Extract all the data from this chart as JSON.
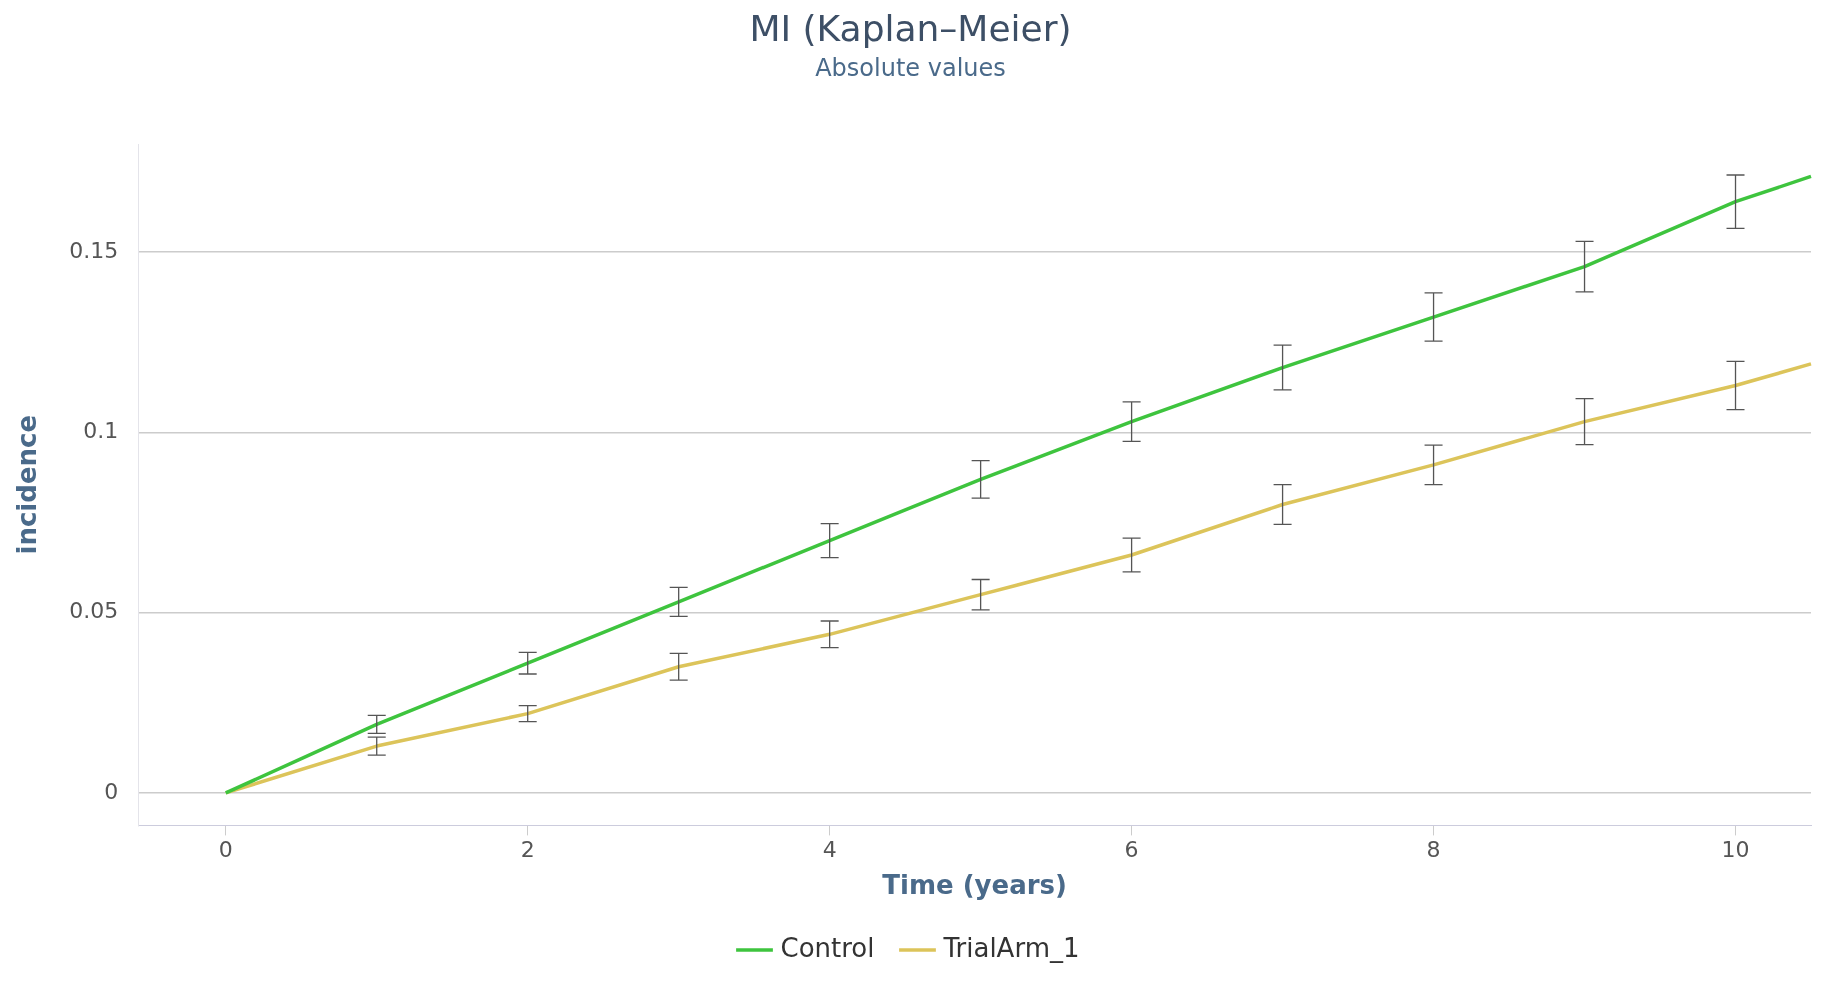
{
  "chart_data": {
    "type": "line",
    "title": "MI (Kaplan–Meier)",
    "subtitle": "Absolute values",
    "xlabel": "Time (years)",
    "ylabel": "incidence",
    "x": [
      0,
      1,
      2,
      3,
      4,
      5,
      6,
      7,
      8,
      9,
      10,
      10.5
    ],
    "series": [
      {
        "name": "Control",
        "color": "#3ec43e",
        "values": [
          0,
          0.019,
          0.036,
          0.053,
          0.07,
          0.087,
          0.103,
          0.118,
          0.132,
          0.146,
          0.164,
          0.171
        ],
        "errors": [
          null,
          0.0025,
          0.003,
          0.004,
          0.0047,
          0.0052,
          0.0055,
          0.0062,
          0.0067,
          0.007,
          0.0074,
          null
        ]
      },
      {
        "name": "TrialArm_1",
        "color": "#dcc45a",
        "values": [
          0,
          0.013,
          0.022,
          0.035,
          0.044,
          0.055,
          0.066,
          0.08,
          0.091,
          0.103,
          0.113,
          0.119
        ],
        "errors": [
          null,
          0.0025,
          0.0022,
          0.0037,
          0.0037,
          0.0042,
          0.0047,
          0.0055,
          0.0055,
          0.0064,
          0.0067,
          null
        ]
      }
    ],
    "xlim": [
      -0.58,
      10.5
    ],
    "xticks": [
      0,
      2,
      4,
      6,
      8,
      10
    ],
    "ylim": [
      -0.009,
      0.18
    ],
    "yticks": [
      0,
      0.05,
      0.1,
      0.15
    ],
    "grid": "y",
    "legend": "bottom",
    "marker": "none",
    "line_style": "solid"
  }
}
